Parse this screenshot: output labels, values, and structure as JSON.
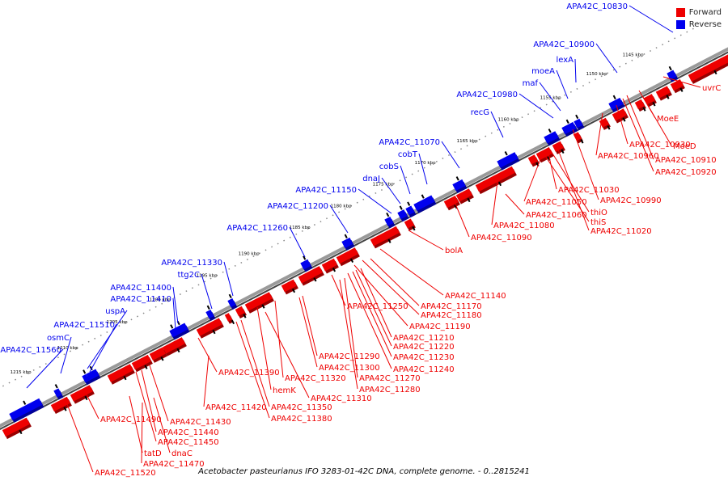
{
  "colors": {
    "forward": "#ee0000",
    "reverse": "#0000ee",
    "backbone": "#9a9a9a"
  },
  "legend": [
    {
      "label": "Forward",
      "color": "#ee0000"
    },
    {
      "label": "Reverse",
      "color": "#0000ee"
    }
  ],
  "caption": "Acetobacter pasteurianus IFO 3283-01-42C DNA, complete genome. - 0..2815241",
  "ticks": [
    "1145 kbp",
    "1150 kbp",
    "1155 kbp",
    "1160 kbp",
    "1165 kbp",
    "1170 kbp",
    "1175 kbp",
    "1180 kbp",
    "1185 kbp",
    "1190 kbp",
    "1195 kbp",
    "1200 kbp",
    "1205 kbp",
    "1210 kbp",
    "1215 kbp"
  ],
  "reverse_labels": [
    "APA42C_10830",
    "APA42C_10900",
    "lexA",
    "moeA",
    "maf",
    "APA42C_10980",
    "recG",
    "APA42C_11070",
    "cobT",
    "cobS",
    "dnaJ",
    "APA42C_11150",
    "APA42C_11200",
    "APA42C_11260",
    "APA42C_11330",
    "ttg2C",
    "APA42C_11400",
    "APA42C_11410",
    "uspA",
    "APA42C_11510",
    "osmC",
    "APA42C_11560"
  ],
  "forward_labels": [
    "uvrC",
    "MoeE",
    "MoeD",
    "APA42C_10930",
    "APA42C_10960",
    "APA42C_10910",
    "APA42C_10920",
    "APA42C_10990",
    "APA42C_11030",
    "APA42C_11050",
    "thiO",
    "thiS",
    "APA42C_11020",
    "APA42C_11060",
    "APA42C_11080",
    "APA42C_11090",
    "bolA",
    "APA42C_11140",
    "APA42C_11170",
    "APA42C_11180",
    "APA42C_11190",
    "APA42C_11250",
    "APA42C_11210",
    "APA42C_11220",
    "APA42C_11230",
    "APA42C_11240",
    "APA42C_11290",
    "APA42C_11300",
    "APA42C_11270",
    "APA42C_11280",
    "APA42C_11390",
    "APA42C_11320",
    "hemK",
    "APA42C_11310",
    "APA42C_11350",
    "APA42C_11380",
    "APA42C_11420",
    "APA42C_11430",
    "APA42C_11440",
    "APA42C_11450",
    "dnaC",
    "tatD",
    "APA42C_11470",
    "APA42C_11490",
    "APA42C_11520"
  ]
}
